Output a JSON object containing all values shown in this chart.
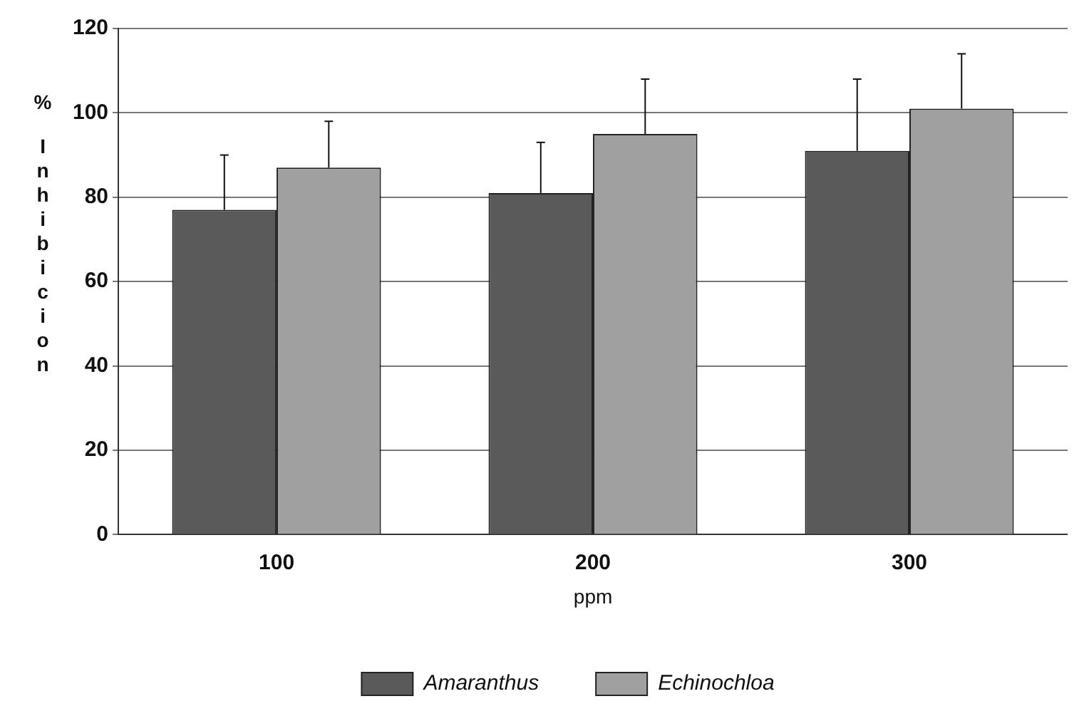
{
  "chart_data": {
    "type": "bar",
    "xlabel": "ppm",
    "ylabel": "% Inhibicion",
    "categories": [
      "100",
      "200",
      "300"
    ],
    "series": [
      {
        "name": "Amaranthus",
        "color": "#5a5a5a",
        "values": [
          77,
          81,
          91
        ],
        "errors": [
          [
            77,
            90
          ],
          [
            81,
            93
          ],
          [
            91,
            108
          ]
        ]
      },
      {
        "name": "Echinochloa",
        "color": "#a0a0a0",
        "values": [
          87,
          95,
          101
        ],
        "errors": [
          [
            87,
            98
          ],
          [
            95,
            108
          ],
          [
            101,
            114
          ]
        ]
      }
    ],
    "ylim": [
      0,
      120
    ],
    "yticks": [
      0,
      20,
      40,
      60,
      80,
      100,
      120
    ],
    "grid": "y",
    "legend": "bottom"
  }
}
